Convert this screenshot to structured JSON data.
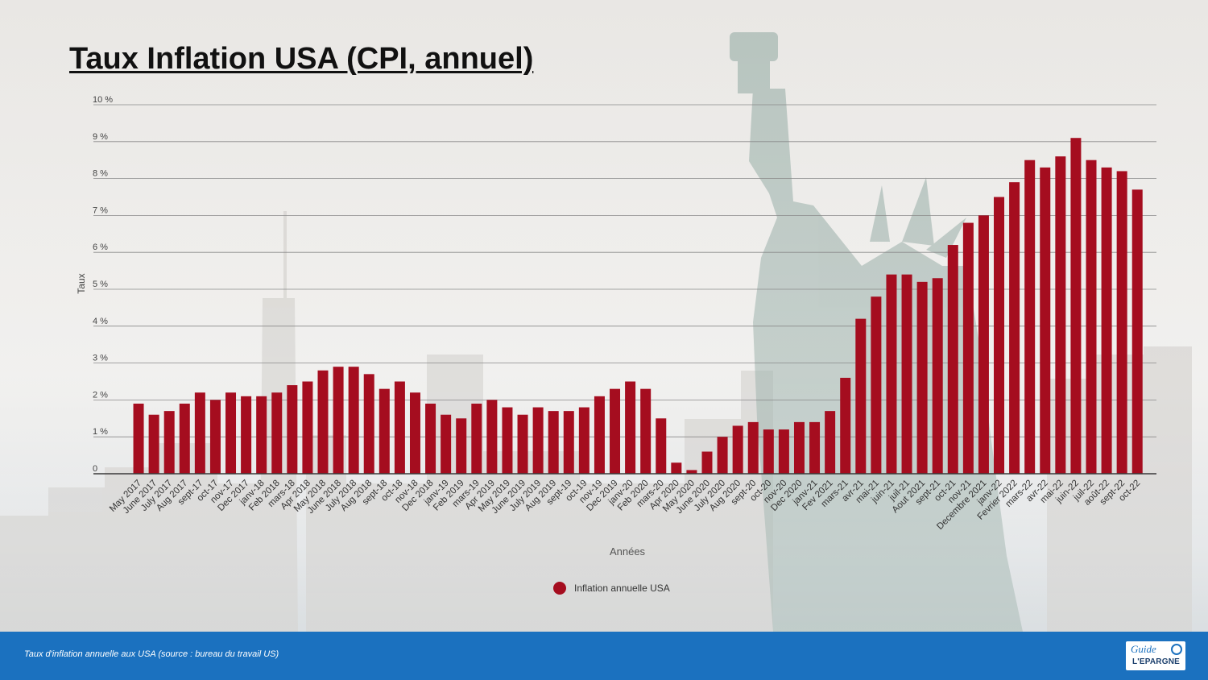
{
  "title": "Taux Inflation USA (CPI, annuel)",
  "footer": {
    "caption": "Taux d'inflation annuelle aux USA (source : bureau du travail US)",
    "logo_top": "Guide",
    "logo_bottom": "L'EPARGNE"
  },
  "colors": {
    "bar": "#a50d1f",
    "grid": "#8a8a8a",
    "axis": "#3a3a3a",
    "footer": "#1b71bf"
  },
  "chart_data": {
    "type": "bar",
    "xlabel": "Années",
    "ylabel": "Taux",
    "ylim": [
      0,
      10
    ],
    "y_ticks": [
      "0",
      "1 %",
      "2 %",
      "3 %",
      "4 %",
      "5 %",
      "6 %",
      "7 %",
      "8 %",
      "9 %",
      "10 %"
    ],
    "grid": true,
    "legend_position": "bottom-center",
    "categories": [
      "May 2017",
      "June 2017",
      "July 2017",
      "Aug 2017",
      "sept-17",
      "oct-17",
      "nov-17",
      "Dec 2017",
      "janv-18",
      "Feb 2018",
      "mars-18",
      "Apr 2018",
      "May 2018",
      "June 2018",
      "July 2018",
      "Aug 2018",
      "sept-18",
      "oct-18",
      "nov-18",
      "Dec 2018",
      "janv-19",
      "Feb 2019",
      "mars-19",
      "Apr 2019",
      "May 2019",
      "June 2019",
      "July 2019",
      "Aug 2019",
      "sept-19",
      "oct-19",
      "nov-19",
      "Dec 2019",
      "janv-20",
      "Feb 2020",
      "mars-20",
      "Apr 2020",
      "May 2020",
      "June 2020",
      "July 2020",
      "Aug 2020",
      "sept-20",
      "oct-20",
      "nov-20",
      "Dec 2020",
      "janv-21",
      "Fev 2021",
      "mars-21",
      "avr-21",
      "mai-21",
      "juin-21",
      "juil-21",
      "Aout 2021",
      "sept-21",
      "oct-21",
      "nov-21",
      "Decembre 2021",
      "janv-22",
      "Fevrier 2022",
      "mars-22",
      "avr-22",
      "mai-22",
      "juin-22",
      "juil-22",
      "août-22",
      "sept-22",
      "oct-22"
    ],
    "series": [
      {
        "name": "Inflation annuelle USA",
        "values": [
          1.9,
          1.6,
          1.7,
          1.9,
          2.2,
          2.0,
          2.2,
          2.1,
          2.1,
          2.2,
          2.4,
          2.5,
          2.8,
          2.9,
          2.9,
          2.7,
          2.3,
          2.5,
          2.2,
          1.9,
          1.6,
          1.5,
          1.9,
          2.0,
          1.8,
          1.6,
          1.8,
          1.7,
          1.7,
          1.8,
          2.1,
          2.3,
          2.5,
          2.3,
          1.5,
          0.3,
          0.1,
          0.6,
          1.0,
          1.3,
          1.4,
          1.2,
          1.2,
          1.4,
          1.4,
          1.7,
          2.6,
          4.2,
          4.8,
          5.4,
          5.4,
          5.2,
          5.3,
          6.2,
          6.8,
          7.0,
          7.5,
          7.9,
          8.5,
          8.3,
          8.6,
          9.1,
          8.5,
          8.3,
          8.2,
          7.7
        ]
      }
    ]
  }
}
